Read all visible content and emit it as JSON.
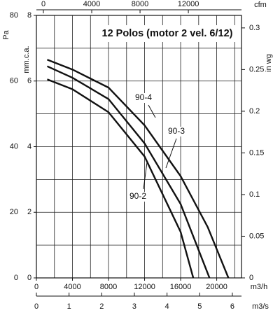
{
  "chart_data": {
    "type": "line",
    "title": "12 Polos (motor 2 vel. 6/12)",
    "x_label": "m3/h",
    "xlim": [
      0,
      22750
    ],
    "xticks": [
      0,
      4000,
      8000,
      12000,
      16000,
      20000
    ],
    "xgrid": [
      0,
      2000,
      4000,
      6000,
      8000,
      10000,
      12000,
      14000,
      16000,
      18000,
      20000,
      22000
    ],
    "x2_label": "m3/s",
    "x2lim": [
      0,
      6.28
    ],
    "x2ticks": [
      0,
      1,
      2,
      3,
      4,
      5,
      6
    ],
    "x3_label": "cfm",
    "x3lim": [
      -580,
      16400
    ],
    "x3ticks": [
      0,
      4000,
      8000,
      12000
    ],
    "y_label": "mm.c.a.",
    "ylim": [
      0,
      8
    ],
    "yticks": [
      0,
      2,
      4,
      6,
      8
    ],
    "ygrid": [
      0,
      1,
      2,
      3,
      4,
      5,
      6,
      7,
      8
    ],
    "y2_label": "in wg",
    "y2lim": [
      0,
      0.315
    ],
    "y2ticks": [
      0,
      0.05,
      0.1,
      0.15,
      0.2,
      0.25,
      0.3
    ],
    "y3_label": "Pa",
    "y3lim": [
      0,
      80
    ],
    "y3ticks": [
      0,
      20,
      40,
      60,
      80
    ],
    "grid": true,
    "series": [
      {
        "name": "90-4",
        "color": "#111111",
        "x": [
          1200,
          4000,
          8000,
          12000,
          16000,
          19000,
          21300
        ],
        "values": [
          6.65,
          6.35,
          5.8,
          4.65,
          3.1,
          1.55,
          0
        ]
      },
      {
        "name": "90-3",
        "color": "#111111",
        "x": [
          1200,
          4000,
          8000,
          12000,
          16000,
          19200
        ],
        "values": [
          6.45,
          6.1,
          5.45,
          4.1,
          2.25,
          0
        ]
      },
      {
        "name": "90-2",
        "color": "#111111",
        "x": [
          1200,
          4000,
          8000,
          12000,
          16000,
          17400
        ],
        "values": [
          6.05,
          5.75,
          5.05,
          3.7,
          1.4,
          0
        ]
      }
    ]
  }
}
